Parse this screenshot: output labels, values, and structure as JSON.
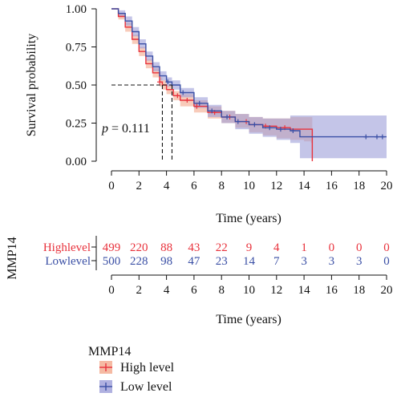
{
  "chart_data": {
    "type": "line",
    "subtype": "kaplan-meier",
    "title": "",
    "xlabel": "Time (years)",
    "ylabel": "Survival probability",
    "xlim": [
      0,
      20
    ],
    "ylim": [
      0,
      1
    ],
    "x_ticks": [
      0,
      2,
      4,
      6,
      8,
      10,
      12,
      14,
      16,
      18,
      20
    ],
    "y_ticks": [
      "0.00",
      "0.25",
      "0.50",
      "0.75",
      "1.00"
    ],
    "annotation": {
      "p_label": "p",
      "p_value": "= 0.111"
    },
    "median_line": {
      "y": 0.5,
      "x_values": [
        3.7,
        4.4
      ]
    },
    "series": [
      {
        "name": "High level",
        "color": "#e8323c",
        "band_color": "#f3a98c",
        "x": [
          0,
          0.5,
          1.0,
          1.5,
          2.0,
          2.5,
          3.0,
          3.5,
          3.7,
          4.0,
          4.5,
          5.0,
          6.0,
          7.0,
          8.0,
          9.0,
          10.0,
          11.0,
          12.0,
          13.0,
          14.0,
          14.5,
          14.6
        ],
        "y": [
          1.0,
          0.95,
          0.88,
          0.8,
          0.72,
          0.64,
          0.58,
          0.52,
          0.5,
          0.47,
          0.43,
          0.4,
          0.36,
          0.32,
          0.29,
          0.26,
          0.24,
          0.23,
          0.22,
          0.21,
          0.21,
          0.21,
          0.0
        ],
        "lower": [
          1.0,
          0.93,
          0.85,
          0.77,
          0.69,
          0.61,
          0.55,
          0.49,
          0.47,
          0.44,
          0.4,
          0.36,
          0.32,
          0.28,
          0.25,
          0.22,
          0.19,
          0.17,
          0.15,
          0.14,
          0.13,
          0.12,
          0.12
        ],
        "upper": [
          1.0,
          0.97,
          0.91,
          0.83,
          0.75,
          0.67,
          0.61,
          0.55,
          0.53,
          0.5,
          0.46,
          0.44,
          0.4,
          0.36,
          0.33,
          0.31,
          0.29,
          0.28,
          0.28,
          0.29,
          0.29,
          0.29,
          0.29
        ],
        "censor_x": [
          3.5,
          4.8,
          5.5,
          6.2,
          7.5,
          8.6,
          9.8,
          11.2,
          12.6
        ]
      },
      {
        "name": "Low level",
        "color": "#3a4fa5",
        "band_color": "#9c9ed8",
        "x": [
          0,
          0.5,
          1.0,
          1.5,
          2.0,
          2.5,
          3.0,
          3.5,
          4.0,
          4.4,
          5.0,
          6.0,
          7.0,
          8.0,
          9.0,
          10.0,
          11.0,
          12.0,
          13.0,
          13.7,
          14.0,
          16.0,
          18.0,
          20.0
        ],
        "y": [
          1.0,
          0.97,
          0.92,
          0.85,
          0.77,
          0.69,
          0.62,
          0.56,
          0.52,
          0.5,
          0.45,
          0.38,
          0.33,
          0.29,
          0.26,
          0.24,
          0.22,
          0.21,
          0.2,
          0.16,
          0.16,
          0.16,
          0.16,
          0.16
        ],
        "lower": [
          1.0,
          0.95,
          0.89,
          0.82,
          0.74,
          0.66,
          0.59,
          0.53,
          0.49,
          0.47,
          0.42,
          0.35,
          0.29,
          0.25,
          0.21,
          0.18,
          0.16,
          0.14,
          0.12,
          0.02,
          0.02,
          0.02,
          0.02,
          0.02
        ],
        "upper": [
          1.0,
          0.99,
          0.95,
          0.88,
          0.8,
          0.72,
          0.65,
          0.59,
          0.55,
          0.53,
          0.48,
          0.42,
          0.37,
          0.33,
          0.31,
          0.29,
          0.28,
          0.28,
          0.3,
          0.3,
          0.3,
          0.3,
          0.3,
          0.3
        ],
        "censor_x": [
          4.1,
          5.2,
          6.4,
          7.3,
          8.4,
          9.2,
          10.4,
          11.5,
          12.3,
          13.2,
          18.5,
          19.3,
          19.7
        ]
      }
    ],
    "risk_table": {
      "title": "MMP14",
      "xlabel": "Time (years)",
      "x_ticks": [
        0,
        2,
        4,
        6,
        8,
        10,
        12,
        14,
        16,
        18,
        20
      ],
      "rows": [
        {
          "label": "Highlevel",
          "color": "#e8323c",
          "counts": [
            "499",
            "220",
            "88",
            "43",
            "22",
            "9",
            "4",
            "1",
            "0",
            "0",
            "0"
          ]
        },
        {
          "label": "Lowlevel",
          "color": "#3a4fa5",
          "counts": [
            "500",
            "228",
            "98",
            "47",
            "23",
            "14",
            "7",
            "3",
            "3",
            "3",
            "0"
          ]
        }
      ]
    },
    "legend": {
      "title": "MMP14",
      "position": "bottom-left",
      "entries": [
        {
          "label": "High level",
          "color": "#e8323c",
          "band_color": "#f3a98c"
        },
        {
          "label": "Low level",
          "color": "#3a4fa5",
          "band_color": "#9c9ed8"
        }
      ]
    }
  }
}
